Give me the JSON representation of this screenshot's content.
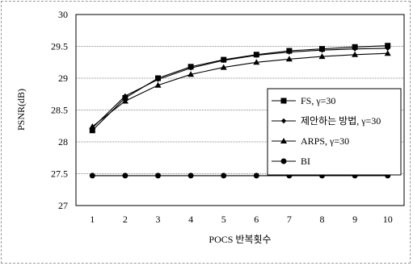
{
  "chart_data": {
    "type": "line",
    "title": "",
    "xlabel": "POCS 반복횟수",
    "ylabel": "PSNR(dB)",
    "categories": [
      "1",
      "2",
      "3",
      "4",
      "5",
      "6",
      "7",
      "8",
      "9",
      "10"
    ],
    "ylim": [
      27,
      30
    ],
    "yticks": [
      "27",
      "27.5",
      "28",
      "28.5",
      "29",
      "29.5",
      "30"
    ],
    "grid": true,
    "legend_position": "right",
    "series": [
      {
        "name": "FS, γ=30",
        "marker": "square",
        "values": [
          28.18,
          28.69,
          29.0,
          29.18,
          29.29,
          29.37,
          29.43,
          29.46,
          29.49,
          29.51
        ]
      },
      {
        "name": "제안하는 방법, γ=30",
        "marker": "diamond",
        "values": [
          28.22,
          28.72,
          28.98,
          29.16,
          29.28,
          29.36,
          29.41,
          29.44,
          29.46,
          29.47
        ]
      },
      {
        "name": "ARPS, γ=30",
        "marker": "triangle",
        "values": [
          28.24,
          28.64,
          28.89,
          29.06,
          29.17,
          29.25,
          29.3,
          29.34,
          29.37,
          29.39
        ]
      },
      {
        "name": "BI",
        "marker": "circle",
        "values": [
          27.47,
          27.47,
          27.47,
          27.47,
          27.47,
          27.47,
          27.47,
          27.47,
          27.47,
          27.47
        ]
      }
    ]
  }
}
